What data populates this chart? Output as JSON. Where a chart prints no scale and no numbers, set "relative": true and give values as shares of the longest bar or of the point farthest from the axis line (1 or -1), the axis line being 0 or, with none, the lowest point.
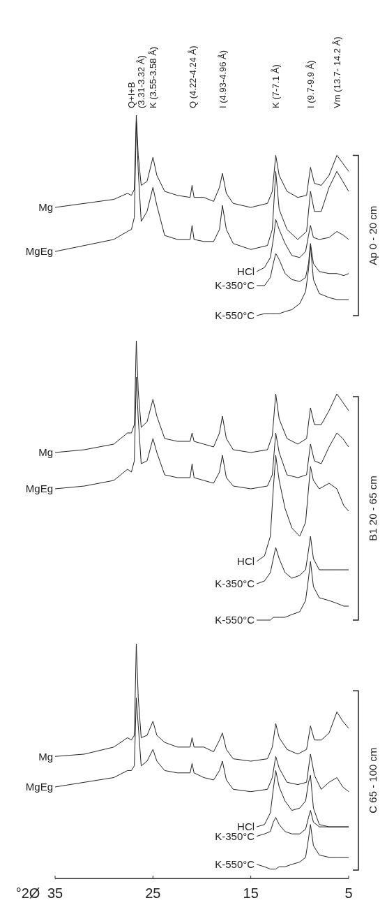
{
  "chart_data": [
    {
      "type": "line",
      "relative": true,
      "xlim": [
        35,
        5
      ],
      "tick_labels": false,
      "marker": "none",
      "line_style": "solid",
      "annotations": [
        "Ap 0 - 20 cm",
        "Q+I+B\n(3.31-3.32 Å)",
        "K (3.55-3.58 Å)",
        "Q (4.22-4.24 Å)",
        "I (4.93-4.96 Å)",
        "K (7-7.1 Å)",
        "I (9.7-9.9 Å)",
        "Vm (13.7- 14.2 Å)"
      ],
      "series": [
        {
          "name": "Mg",
          "color": "#222222",
          "x": [
            35,
            32,
            29,
            27.6,
            27.2,
            26.9,
            26.7,
            26.5,
            26.2,
            25.6,
            25.0,
            24.6,
            23.8,
            22.5,
            21.2,
            21.0,
            20.8,
            19.8,
            18.8,
            18.2,
            17.9,
            17.5,
            16.8,
            15,
            13.3,
            12.8,
            12.45,
            12.1,
            11.3,
            10.2,
            9.3,
            8.9,
            8.5,
            7.8,
            7,
            6.2,
            5.6,
            5
          ],
          "values": [
            0.54,
            0.56,
            0.58,
            0.61,
            0.6,
            0.63,
            1.0,
            0.8,
            0.65,
            0.67,
            0.79,
            0.7,
            0.62,
            0.6,
            0.59,
            0.65,
            0.59,
            0.59,
            0.57,
            0.64,
            0.71,
            0.61,
            0.56,
            0.54,
            0.56,
            0.62,
            0.8,
            0.7,
            0.62,
            0.59,
            0.6,
            0.74,
            0.66,
            0.65,
            0.7,
            0.8,
            0.76,
            0.72
          ]
        },
        {
          "name": "MgEg",
          "color": "#222222",
          "x": [
            35,
            32,
            29,
            27.6,
            27.2,
            26.9,
            26.7,
            26.5,
            26.2,
            25.6,
            25.0,
            24.6,
            23.8,
            22.5,
            21.2,
            21.0,
            20.8,
            19.8,
            18.8,
            18.2,
            17.9,
            17.5,
            16.8,
            15,
            13.3,
            12.8,
            12.45,
            12.1,
            11.3,
            10.2,
            9.3,
            8.9,
            8.5,
            7.8,
            7,
            6.2,
            5.6,
            5
          ],
          "values": [
            0.32,
            0.35,
            0.38,
            0.42,
            0.43,
            0.49,
            0.97,
            0.72,
            0.47,
            0.52,
            0.64,
            0.55,
            0.4,
            0.38,
            0.38,
            0.45,
            0.38,
            0.37,
            0.37,
            0.43,
            0.55,
            0.43,
            0.36,
            0.33,
            0.35,
            0.43,
            0.72,
            0.53,
            0.43,
            0.38,
            0.42,
            0.62,
            0.52,
            0.52,
            0.64,
            0.72,
            0.67,
            0.62
          ]
        },
        {
          "name": "HCl",
          "color": "#222222",
          "x": [
            14.4,
            13.6,
            13,
            12.7,
            12.45,
            12.1,
            11.5,
            10.8,
            10,
            9.4,
            9.1,
            8.9,
            8.6,
            8.0,
            7,
            6.2,
            5.5,
            5
          ],
          "values": [
            0.22,
            0.24,
            0.29,
            0.38,
            0.48,
            0.43,
            0.36,
            0.3,
            0.29,
            0.32,
            0.4,
            0.45,
            0.39,
            0.38,
            0.39,
            0.42,
            0.4,
            0.38
          ]
        },
        {
          "name": "K-350°C",
          "color": "#222222",
          "x": [
            14.4,
            13.6,
            13,
            12.7,
            12.45,
            12.1,
            11.5,
            10.8,
            10,
            9.4,
            9.1,
            8.9,
            8.6,
            8.0,
            7,
            6.2,
            5.5,
            5
          ],
          "values": [
            0.15,
            0.15,
            0.19,
            0.26,
            0.31,
            0.28,
            0.21,
            0.18,
            0.17,
            0.19,
            0.26,
            0.36,
            0.26,
            0.22,
            0.21,
            0.21,
            0.2,
            0.21
          ]
        },
        {
          "name": "K-550°C",
          "color": "#222222",
          "x": [
            14.4,
            13.6,
            13,
            12.7,
            12.45,
            12.1,
            11.5,
            10.8,
            10,
            9.4,
            9.1,
            8.9,
            8.6,
            8.0,
            7,
            6.2,
            5.5,
            5
          ],
          "values": [
            0.0,
            0.01,
            0.01,
            0.01,
            0.01,
            0.01,
            0.02,
            0.03,
            0.06,
            0.12,
            0.23,
            0.35,
            0.18,
            0.11,
            0.09,
            0.08,
            0.08,
            0.08
          ]
        }
      ]
    },
    {
      "type": "line",
      "annotations": [
        "B1 20 - 65 cm"
      ],
      "relative": true,
      "xlim": [
        35,
        5
      ],
      "tick_labels": false,
      "marker": "none",
      "line_style": "solid",
      "series": [
        {
          "name": "Mg",
          "color": "#222222",
          "x": [
            35,
            32,
            29,
            27.6,
            27.2,
            26.9,
            26.7,
            26.5,
            26.2,
            25.6,
            25.0,
            24.6,
            23.8,
            22.5,
            21.2,
            21.0,
            20.8,
            19.8,
            18.8,
            18.2,
            17.9,
            17.5,
            16.8,
            15,
            13.3,
            12.8,
            12.45,
            12.1,
            11.3,
            10.2,
            9.3,
            8.9,
            8.5,
            7.8,
            7,
            6.2,
            5.6,
            5
          ],
          "values": [
            0.6,
            0.61,
            0.63,
            0.67,
            0.67,
            0.7,
            1.0,
            0.82,
            0.69,
            0.71,
            0.79,
            0.73,
            0.65,
            0.64,
            0.64,
            0.67,
            0.64,
            0.63,
            0.62,
            0.67,
            0.73,
            0.65,
            0.61,
            0.6,
            0.61,
            0.66,
            0.81,
            0.72,
            0.65,
            0.63,
            0.65,
            0.76,
            0.7,
            0.7,
            0.75,
            0.81,
            0.78,
            0.75
          ]
        },
        {
          "name": "MgEg",
          "color": "#222222",
          "x": [
            35,
            32,
            29,
            27.6,
            27.2,
            26.9,
            26.7,
            26.5,
            26.2,
            25.6,
            25.0,
            24.6,
            23.8,
            22.5,
            21.2,
            21.0,
            20.8,
            19.8,
            18.8,
            18.2,
            17.9,
            17.5,
            16.8,
            15,
            13.3,
            12.8,
            12.45,
            12.1,
            11.3,
            10.2,
            9.3,
            8.9,
            8.5,
            7.8,
            7,
            6.2,
            5.6,
            5
          ],
          "values": [
            0.47,
            0.48,
            0.5,
            0.54,
            0.53,
            0.57,
            0.87,
            0.72,
            0.56,
            0.57,
            0.65,
            0.6,
            0.52,
            0.51,
            0.51,
            0.56,
            0.51,
            0.5,
            0.49,
            0.53,
            0.59,
            0.51,
            0.48,
            0.47,
            0.48,
            0.52,
            0.67,
            0.6,
            0.52,
            0.51,
            0.52,
            0.63,
            0.57,
            0.56,
            0.62,
            0.67,
            0.65,
            0.62
          ]
        },
        {
          "name": "HCl",
          "color": "#222222",
          "x": [
            14.4,
            13.6,
            13,
            12.7,
            12.45,
            12.1,
            11.5,
            10.8,
            10,
            9.4,
            9.1,
            8.9,
            8.6,
            8.0,
            7,
            6.2,
            5.5,
            5
          ],
          "values": [
            0.21,
            0.23,
            0.3,
            0.47,
            0.59,
            0.5,
            0.4,
            0.33,
            0.3,
            0.35,
            0.47,
            0.55,
            0.5,
            0.47,
            0.49,
            0.47,
            0.41,
            0.39
          ]
        },
        {
          "name": "K-350°C",
          "color": "#222222",
          "x": [
            14.4,
            13.6,
            13,
            12.7,
            12.45,
            12.1,
            11.5,
            10.8,
            10,
            9.4,
            9.1,
            8.9,
            8.6,
            8.0,
            7,
            6.2,
            5.5,
            5
          ],
          "values": [
            0.13,
            0.14,
            0.17,
            0.22,
            0.26,
            0.22,
            0.17,
            0.15,
            0.16,
            0.18,
            0.25,
            0.3,
            0.22,
            0.18,
            0.18,
            0.18,
            0.18,
            0.18
          ]
        },
        {
          "name": "K-550°C",
          "color": "#222222",
          "x": [
            14.4,
            13.6,
            13,
            12.7,
            12.45,
            12.1,
            11.5,
            10.8,
            10,
            9.4,
            9.1,
            8.9,
            8.6,
            8.0,
            7,
            6.2,
            5.5,
            5
          ],
          "values": [
            0.0,
            0.0,
            0.0,
            0.01,
            0.01,
            0.01,
            0.01,
            0.02,
            0.03,
            0.07,
            0.15,
            0.21,
            0.12,
            0.08,
            0.07,
            0.06,
            0.05,
            0.05
          ]
        }
      ]
    },
    {
      "type": "line",
      "annotations": [
        "C 65 - 100 cm"
      ],
      "relative": true,
      "xlim": [
        35,
        5
      ],
      "xticks": [
        35,
        25,
        15,
        5
      ],
      "xlabel": "°2Ø",
      "tick_labels": "x",
      "marker": "none",
      "line_style": "solid",
      "series": [
        {
          "name": "Mg",
          "color": "#222222",
          "x": [
            35,
            32,
            29,
            27.6,
            27.2,
            26.9,
            26.7,
            26.5,
            26.2,
            25.6,
            25.0,
            24.6,
            23.8,
            22.5,
            21.2,
            21.0,
            20.8,
            19.8,
            18.8,
            18.2,
            17.9,
            17.5,
            16.8,
            15,
            13.3,
            12.8,
            12.45,
            12.1,
            11.3,
            10.2,
            9.3,
            8.9,
            8.5,
            7.8,
            7,
            6.2,
            5.6,
            5
          ],
          "values": [
            0.52,
            0.53,
            0.56,
            0.6,
            0.59,
            0.61,
            1.0,
            0.77,
            0.6,
            0.61,
            0.67,
            0.61,
            0.58,
            0.56,
            0.56,
            0.6,
            0.56,
            0.56,
            0.54,
            0.59,
            0.62,
            0.55,
            0.51,
            0.5,
            0.51,
            0.56,
            0.66,
            0.6,
            0.55,
            0.53,
            0.55,
            0.65,
            0.59,
            0.59,
            0.62,
            0.71,
            0.67,
            0.64
          ]
        },
        {
          "name": "MgEg",
          "color": "#222222",
          "x": [
            35,
            32,
            29,
            27.6,
            27.2,
            26.9,
            26.7,
            26.5,
            26.2,
            25.6,
            25.0,
            24.6,
            23.8,
            22.5,
            21.2,
            21.0,
            20.8,
            19.8,
            18.8,
            18.2,
            17.9,
            17.5,
            16.8,
            15,
            13.3,
            12.8,
            12.45,
            12.1,
            11.3,
            10.2,
            9.3,
            8.9,
            8.5,
            7.8,
            7,
            6.2,
            5.6,
            5
          ],
          "values": [
            0.39,
            0.41,
            0.43,
            0.46,
            0.46,
            0.48,
            0.77,
            0.65,
            0.48,
            0.5,
            0.55,
            0.5,
            0.46,
            0.45,
            0.45,
            0.49,
            0.45,
            0.43,
            0.42,
            0.46,
            0.5,
            0.42,
            0.38,
            0.37,
            0.38,
            0.43,
            0.52,
            0.47,
            0.41,
            0.4,
            0.41,
            0.53,
            0.44,
            0.38,
            0.41,
            0.43,
            0.39,
            0.37
          ]
        },
        {
          "name": "HCl",
          "color": "#222222",
          "x": [
            14.4,
            13.6,
            13,
            12.7,
            12.45,
            12.1,
            11.5,
            10.8,
            10,
            9.4,
            9.1,
            8.9,
            8.6,
            8.0,
            7,
            6.2,
            5.5,
            5
          ],
          "values": [
            0.22,
            0.23,
            0.28,
            0.38,
            0.46,
            0.39,
            0.33,
            0.29,
            0.3,
            0.33,
            0.41,
            0.44,
            0.3,
            0.23,
            0.22,
            0.22,
            0.22,
            0.22
          ]
        },
        {
          "name": "K-350°C",
          "color": "#222222",
          "x": [
            14.4,
            13.6,
            13,
            12.7,
            12.45,
            12.1,
            11.5,
            10.8,
            10,
            9.4,
            9.1,
            8.9,
            8.6,
            8.0,
            7,
            6.2,
            5.5,
            5
          ],
          "values": [
            0.18,
            0.19,
            0.2,
            0.24,
            0.26,
            0.23,
            0.2,
            0.19,
            0.19,
            0.21,
            0.26,
            0.29,
            0.24,
            0.22,
            0.22,
            0.22,
            0.22,
            0.22
          ]
        },
        {
          "name": "K-550°C",
          "color": "#222222",
          "x": [
            14.4,
            13.6,
            13,
            12.7,
            12.45,
            12.1,
            11.5,
            10.8,
            10,
            9.4,
            9.1,
            8.9,
            8.6,
            8.0,
            7,
            6.2,
            5.5,
            5
          ],
          "values": [
            0.06,
            0.05,
            0.04,
            0.04,
            0.04,
            0.05,
            0.05,
            0.06,
            0.07,
            0.09,
            0.17,
            0.23,
            0.14,
            0.1,
            0.09,
            0.09,
            0.09,
            0.09
          ]
        }
      ]
    }
  ]
}
